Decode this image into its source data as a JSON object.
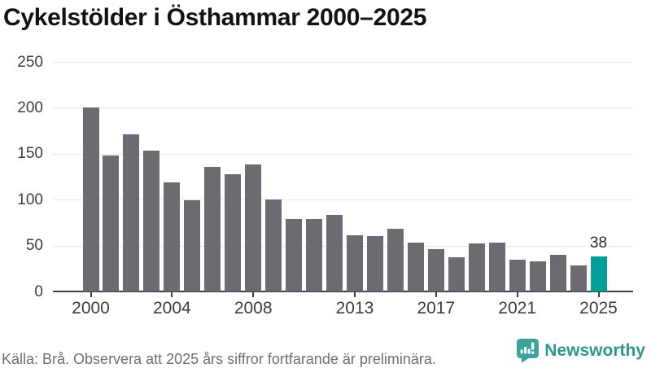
{
  "title": "Cykelstölder i Östhammar 2000–2025",
  "chart_data": {
    "type": "bar",
    "title": "Cykelstölder i Östhammar 2000–2025",
    "categories": [
      "2000",
      "2001",
      "2002",
      "2003",
      "2004",
      "2005",
      "2006",
      "2007",
      "2008",
      "2009",
      "2010",
      "2011",
      "2012",
      "2013",
      "2014",
      "2015",
      "2016",
      "2017",
      "2018",
      "2019",
      "2020",
      "2021",
      "2022",
      "2023",
      "2024",
      "2025"
    ],
    "values": [
      200,
      148,
      171,
      153,
      119,
      99,
      136,
      128,
      138,
      100,
      79,
      79,
      83,
      61,
      60,
      68,
      53,
      46,
      37,
      52,
      53,
      35,
      33,
      40,
      28,
      38
    ],
    "xlabel": "",
    "ylabel": "",
    "ylim": [
      0,
      250
    ],
    "yticks": [
      0,
      50,
      100,
      150,
      200,
      250
    ],
    "xticks": [
      "2000",
      "2004",
      "2008",
      "2013",
      "2017",
      "2021",
      "2025"
    ],
    "grid": true,
    "legend": "none",
    "bar_color": "#6d6b71",
    "highlight_index": 25,
    "highlight_color": "#009e96",
    "annotation": {
      "index": 25,
      "text": "38"
    }
  },
  "footer": {
    "source_note": "Källa: Brå. Observera att 2025 års siffror fortfarande är preliminära.",
    "brand": "Newsworthy"
  },
  "colors": {
    "title": "#121212",
    "tick_text": "#3d3d3d",
    "grid": "#e8e8e8",
    "axis": "#3f3f3f",
    "bar": "#6d6b71",
    "highlight": "#009e96",
    "footer_text": "#6e6e6e",
    "brand_icon": "#3ba39a",
    "brand_text": "#2e968e"
  }
}
